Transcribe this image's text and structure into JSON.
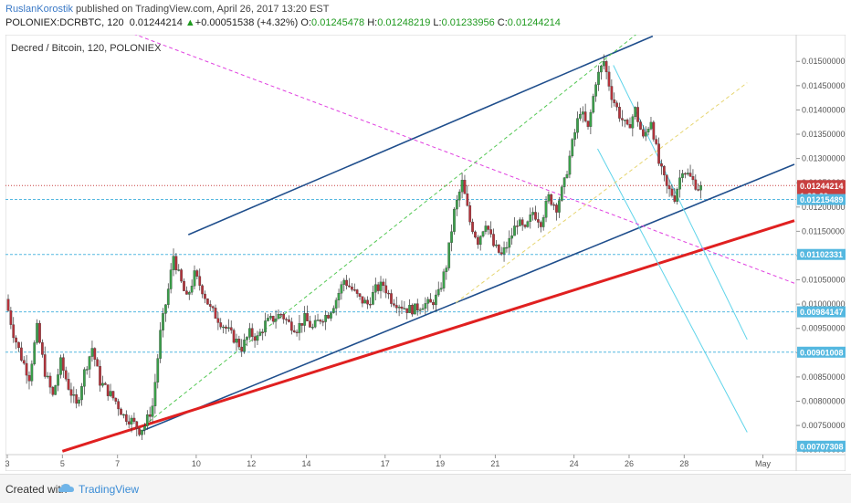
{
  "header": {
    "author": "RuslanKorostik",
    "published_text": " published on TradingView.com, April 26, 2017 13:20 EST",
    "symbol": "POLONIEX:DCRBTC, 120",
    "last": "0.01244214",
    "change": "+0.00051538 (+4.32%)",
    "o_label": "O:",
    "o": "0.01245478",
    "h_label": "H:",
    "h": "0.01248219",
    "l_label": "L:",
    "l": "0.01233956",
    "c_label": "C:",
    "c": "0.01244214"
  },
  "footer": {
    "created_with": "Created with",
    "brand": "TradingView"
  },
  "colors": {
    "up": "#3aa04a",
    "down": "#b5323a",
    "channel": "#1f4e8c",
    "support": "#e02020",
    "cyan": "#5fd4ea",
    "magenta": "#e040e0",
    "fib_green": "#55c855",
    "fib_yellow": "#e6d570",
    "hline": "#55b8e0",
    "lastline": "#c84040"
  },
  "chart_data": {
    "type": "candlestick",
    "title": "Decred / Bitcoin, 120, POLONIEX",
    "ylim": [
      0.0069,
      0.01555
    ],
    "y_ticks": [
      "0.01550000",
      "0.01500000",
      "0.01450000",
      "0.01400000",
      "0.01350000",
      "0.01300000",
      "0.01250000",
      "0.01200000",
      "0.01150000",
      "0.01100000",
      "0.01050000",
      "0.01000000",
      "0.00950000",
      "0.00900000",
      "0.00850000",
      "0.00800000",
      "0.00750000",
      "0.00700000"
    ],
    "x_ticks": [
      "3",
      "5",
      "7",
      "10",
      "12",
      "14",
      "17",
      "19",
      "21",
      "24",
      "26",
      "28",
      "May"
    ],
    "price_labels": [
      {
        "text": "0.01244214",
        "value": 0.01244214,
        "color": "#c84040"
      },
      {
        "text": "1:39:39",
        "value": 0.01223,
        "color": "#c84040"
      },
      {
        "text": "0.01215489",
        "value": 0.01215489,
        "color": "#55b8e0"
      },
      {
        "text": "0.01102331",
        "value": 0.01102331,
        "color": "#55b8e0"
      },
      {
        "text": "0.00984147",
        "value": 0.00984147,
        "color": "#55b8e0"
      },
      {
        "text": "0.00901008",
        "value": 0.00901008,
        "color": "#55b8e0"
      },
      {
        "text": "0.00707308",
        "value": 0.00707308,
        "color": "#55b8e0"
      }
    ],
    "h_levels": [
      0.01215489,
      0.01102331,
      0.00984147,
      0.00901008
    ],
    "last_price": 0.01244214,
    "price_path": [
      [
        0,
        0.0101
      ],
      [
        3,
        0.0094
      ],
      [
        6,
        0.0089
      ],
      [
        9,
        0.0085
      ],
      [
        12,
        0.0095
      ],
      [
        15,
        0.0086
      ],
      [
        18,
        0.0081
      ],
      [
        21,
        0.0088
      ],
      [
        24,
        0.0083
      ],
      [
        27,
        0.0079
      ],
      [
        30,
        0.0086
      ],
      [
        33,
        0.0091
      ],
      [
        36,
        0.0084
      ],
      [
        39,
        0.0082
      ],
      [
        42,
        0.008
      ],
      [
        45,
        0.0077
      ],
      [
        48,
        0.0076
      ],
      [
        51,
        0.0074
      ],
      [
        53,
        0.0075
      ],
      [
        56,
        0.0079
      ],
      [
        59,
        0.0094
      ],
      [
        62,
        0.0103
      ],
      [
        64,
        0.011
      ],
      [
        66,
        0.0106
      ],
      [
        69,
        0.0101
      ],
      [
        72,
        0.0106
      ],
      [
        75,
        0.0103
      ],
      [
        78,
        0.0099
      ],
      [
        81,
        0.0097
      ],
      [
        84,
        0.0095
      ],
      [
        87,
        0.0093
      ],
      [
        90,
        0.0091
      ],
      [
        93,
        0.0094
      ],
      [
        96,
        0.0093
      ],
      [
        99,
        0.0096
      ],
      [
        102,
        0.0097
      ],
      [
        105,
        0.0098
      ],
      [
        108,
        0.0096
      ],
      [
        111,
        0.0095
      ],
      [
        114,
        0.0097
      ],
      [
        117,
        0.0095
      ],
      [
        120,
        0.0097
      ],
      [
        123,
        0.0098
      ],
      [
        126,
        0.0101
      ],
      [
        129,
        0.0105
      ],
      [
        132,
        0.0103
      ],
      [
        135,
        0.0101
      ],
      [
        138,
        0.01
      ],
      [
        141,
        0.0103
      ],
      [
        144,
        0.0104
      ],
      [
        147,
        0.0101
      ],
      [
        150,
        0.01
      ],
      [
        153,
        0.0099
      ],
      [
        156,
        0.0099
      ],
      [
        159,
        0.01
      ],
      [
        162,
        0.01
      ],
      [
        165,
        0.0102
      ],
      [
        168,
        0.0108
      ],
      [
        171,
        0.0119
      ],
      [
        174,
        0.0125
      ],
      [
        177,
        0.0117
      ],
      [
        180,
        0.0113
      ],
      [
        183,
        0.0117
      ],
      [
        186,
        0.0112
      ],
      [
        189,
        0.011
      ],
      [
        192,
        0.0113
      ],
      [
        195,
        0.0117
      ],
      [
        198,
        0.0115
      ],
      [
        201,
        0.0119
      ],
      [
        204,
        0.0117
      ],
      [
        207,
        0.0122
      ],
      [
        210,
        0.012
      ],
      [
        213,
        0.0125
      ],
      [
        216,
        0.0133
      ],
      [
        219,
        0.014
      ],
      [
        222,
        0.0136
      ],
      [
        225,
        0.0146
      ],
      [
        228,
        0.015
      ],
      [
        231,
        0.0143
      ],
      [
        234,
        0.0139
      ],
      [
        237,
        0.0136
      ],
      [
        240,
        0.014
      ],
      [
        243,
        0.0134
      ],
      [
        246,
        0.0138
      ],
      [
        249,
        0.0129
      ],
      [
        252,
        0.0124
      ],
      [
        255,
        0.0122
      ],
      [
        258,
        0.0128
      ],
      [
        261,
        0.0126
      ],
      [
        264,
        0.0124
      ]
    ],
    "lines": [
      {
        "kind": "upper-channel",
        "color": "#1f4e8c",
        "from": [
          69,
          0.01143
        ],
        "to": [
          246,
          0.01552
        ]
      },
      {
        "kind": "lower-channel",
        "color": "#1f4e8c",
        "from": [
          51,
          0.00738
        ],
        "to": [
          300,
          0.01288
        ]
      },
      {
        "kind": "support",
        "color": "#e02020",
        "from": [
          21,
          0.00697
        ],
        "to": [
          300,
          0.01172
        ]
      },
      {
        "kind": "cyan-1",
        "color": "#5fd4ea",
        "from": [
          231,
          0.01492
        ],
        "to": [
          282,
          0.00927
        ]
      },
      {
        "kind": "cyan-2",
        "color": "#5fd4ea",
        "from": [
          225,
          0.0132
        ],
        "to": [
          282,
          0.00736
        ]
      },
      {
        "kind": "magenta",
        "color": "#e040e0",
        "from": [
          48,
          0.01557
        ],
        "to": [
          300,
          0.01043
        ]
      },
      {
        "kind": "fib-green",
        "color": "#55c855",
        "from": [
          54,
          0.00758
        ],
        "to": [
          240,
          0.01557
        ]
      },
      {
        "kind": "fib-yellow",
        "color": "#e6d570",
        "from": [
          171,
          0.01003
        ],
        "to": [
          282,
          0.01456
        ]
      }
    ]
  }
}
